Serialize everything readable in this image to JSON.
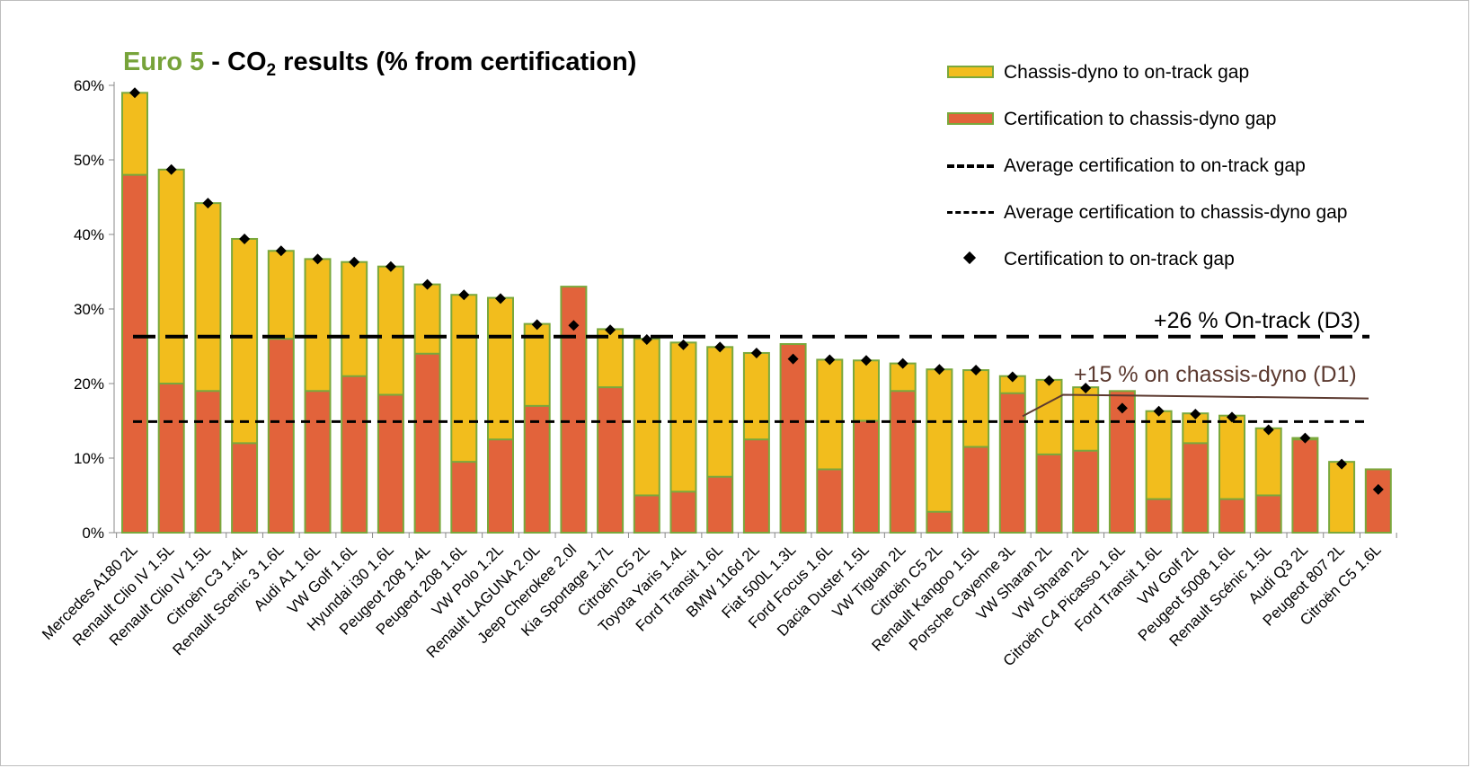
{
  "title": {
    "accent": "Euro 5",
    "part1": " - CO",
    "sub": "2",
    "part2": " results (% from certification)"
  },
  "legend": [
    {
      "label": "Chassis-dyno to on-track gap",
      "symbol": "box-yellow"
    },
    {
      "label": "Certification to chassis-dyno gap",
      "symbol": "box-orange"
    },
    {
      "label": "Average certification to on-track gap",
      "symbol": "long-dash"
    },
    {
      "label": "Average certification to chassis-dyno gap",
      "symbol": "short-dash"
    },
    {
      "label": "Certification to on-track gap",
      "symbol": "diamond"
    }
  ],
  "annotations": {
    "on_track": "+26 % On-track (D3)",
    "chassis": "+15 % on chassis-dyno (D1)"
  },
  "colors": {
    "yellow": "#f2bd1d",
    "orange": "#e2633b",
    "green": "#7aa83c",
    "annot_brown": "#5c3a30"
  },
  "chart_data": {
    "type": "bar",
    "stacked": true,
    "title": "Euro 5 - CO2 results (% from certification)",
    "xlabel": "",
    "ylabel": "",
    "ylim": [
      0,
      60
    ],
    "yticks": [
      "0%",
      "10%",
      "20%",
      "30%",
      "40%",
      "50%",
      "60%"
    ],
    "grid": false,
    "legend_position": "top-right",
    "categories": [
      "Mercedes A180 2L",
      "Renault  Clio IV 1.5L",
      "Renault Clio IV 1.5L",
      "Citroën C3 1.4L",
      "Renault  Scenic 3 1.6L",
      "Audi A1 1.6L",
      "VW Golf 1.6L",
      "Hyundai i30 1.6L",
      "Peugeot 208 1.4L",
      "Peugeot  208 1.6L",
      "VW Polo 1.2L",
      "Renault LAGUNA 2.0L",
      "Jeep  Cherokee 2.0l",
      "Kia Sportage 1.7L",
      "Citroën C5 2L",
      "Toyota Yaris 1.4L",
      "Ford Transit 1.6L",
      "BMW 116d 2L",
      "Fiat 500L 1.3L",
      "Ford Focus 1.6L",
      "Dacia Duster 1.5L",
      "VW Tiguan 2L",
      "Citroën C5 2L",
      "Renault  Kangoo 1.5L",
      "Porsche Cayenne 3L",
      "VW Sharan 2L",
      "VW Sharan 2L",
      "Citroën C4 Picasso 1.6L",
      "Ford Transit 1.6L",
      "VW Golf 2L",
      "Peugeot 5008 1.6L",
      "Renault Scénic 1.5L",
      "Audi Q3 2L",
      "Peugeot 807 2L",
      "Citroën C5 1.6L"
    ],
    "series": [
      {
        "name": "Certification to chassis-dyno gap",
        "kind": "bar",
        "color": "#e2633b",
        "values": [
          48,
          20,
          19,
          12,
          26,
          19,
          21,
          18.5,
          24,
          9.5,
          12.5,
          17,
          33,
          19.5,
          5,
          5.5,
          7.5,
          12.5,
          25.3,
          8.5,
          15,
          19,
          2.8,
          11.5,
          18.7,
          10.5,
          11,
          19,
          4.5,
          12,
          4.5,
          5,
          12.5,
          0,
          8.5
        ]
      },
      {
        "name": "Chassis-dyno to on-track gap",
        "kind": "bar",
        "color": "#f2bd1d",
        "values": [
          11,
          28.7,
          25.2,
          27.4,
          11.8,
          17.7,
          15.3,
          17.2,
          9.3,
          22.4,
          19,
          11,
          0,
          7.8,
          21,
          20,
          17.4,
          11.6,
          0,
          14.7,
          8.1,
          3.7,
          19.1,
          10.3,
          2.3,
          10,
          8.5,
          0,
          11.8,
          4,
          11.2,
          9,
          0.2,
          9.5,
          0
        ]
      },
      {
        "name": "Certification to on-track gap",
        "kind": "marker",
        "values": [
          59,
          48.7,
          44.2,
          39.4,
          37.8,
          36.7,
          36.3,
          35.7,
          33.3,
          31.9,
          31.4,
          27.9,
          27.8,
          27.2,
          25.9,
          25.2,
          24.9,
          24.1,
          23.3,
          23.2,
          23.1,
          22.7,
          21.9,
          21.8,
          20.9,
          20.4,
          19.4,
          16.7,
          16.3,
          15.9,
          15.5,
          13.8,
          12.7,
          9.2,
          5.8
        ]
      },
      {
        "name": "Average certification to on-track gap",
        "kind": "hline",
        "value": 26.3
      },
      {
        "name": "Average certification to chassis-dyno gap",
        "kind": "hline",
        "value": 14.9
      }
    ]
  }
}
